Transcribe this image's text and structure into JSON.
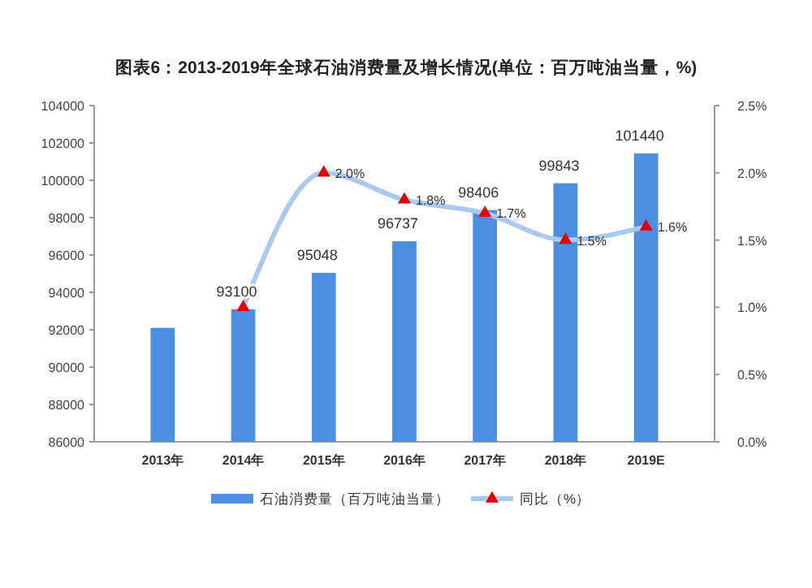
{
  "chart_data": {
    "type": "bar",
    "title": "图表6：2013-2019年全球石油消费量及增长情况(单位：百万吨油当量，%)",
    "categories": [
      "2013年",
      "2014年",
      "2015年",
      "2016年",
      "2017年",
      "2018年",
      "2019E"
    ],
    "series": [
      {
        "name": "石油消费量（百万吨油当量）",
        "color": "#4a8fe0",
        "values": [
          92100,
          93100,
          95048,
          96737,
          98406,
          99843,
          101440
        ],
        "value_labels": [
          null,
          "93100",
          "95048",
          "96737",
          "98406",
          "99843",
          "101440"
        ]
      },
      {
        "name": "同比（%）",
        "type": "line",
        "axis": "y2",
        "color": "#a9c9f0",
        "marker": "triangle",
        "values": [
          null,
          1.0,
          2.0,
          1.8,
          1.7,
          1.5,
          1.6
        ],
        "value_labels": [
          null,
          null,
          "2.0%",
          "1.8%",
          "1.7%",
          "1.5%",
          "1.6%"
        ]
      }
    ],
    "ylim": [
      86000,
      104000
    ],
    "yticks": [
      86000,
      88000,
      90000,
      92000,
      94000,
      96000,
      98000,
      100000,
      102000,
      104000
    ],
    "y2lim": [
      0,
      2.5
    ],
    "y2ticks": [
      {
        "value": 0,
        "label": "0.0%"
      },
      {
        "value": 0.5,
        "label": "0.5%"
      },
      {
        "value": 1,
        "label": "1.0%"
      },
      {
        "value": 1.5,
        "label": "1.5%"
      },
      {
        "value": 2,
        "label": "2.0%"
      },
      {
        "value": 2.5,
        "label": "2.5%"
      }
    ],
    "grid": false,
    "legend": "bottom"
  }
}
